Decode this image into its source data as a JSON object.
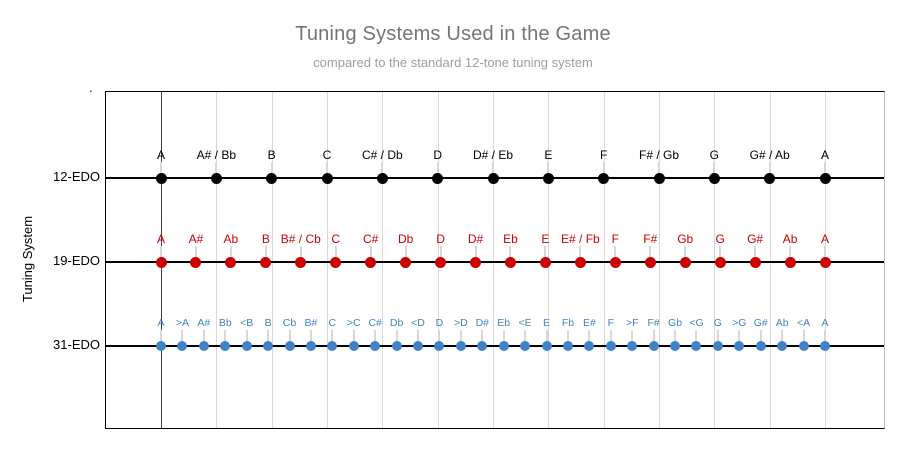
{
  "chart_data": {
    "type": "scatter",
    "title": "Tuning Systems Used in the Game",
    "subtitle": "compared to the standard 12-tone tuning system",
    "ylabel": "Tuning System",
    "corner_marker": ".",
    "legend": "none",
    "grid": "vertical gridlines at each 12-EDO note position; emphasized line at first note A",
    "x_range_semitones": [
      0,
      12
    ],
    "rows": [
      {
        "label": "12-EDO",
        "color": "#000000",
        "dot_size": 11,
        "notes": [
          "A",
          "A# / Bb",
          "B",
          "C",
          "C# / Db",
          "D",
          "D# / Eb",
          "E",
          "F",
          "F# / Gb",
          "G",
          "G# / Ab",
          "A"
        ]
      },
      {
        "label": "19-EDO",
        "color": "#cc0000",
        "dot_size": 11,
        "notes": [
          "A",
          "A#",
          "Ab",
          "B",
          "B# / Cb",
          "C",
          "C#",
          "Db",
          "D",
          "D#",
          "Eb",
          "E",
          "E# / Fb",
          "F",
          "F#",
          "Gb",
          "G",
          "G#",
          "Ab",
          "A"
        ]
      },
      {
        "label": "31-EDO",
        "color": "#4183c6",
        "dot_size": 10,
        "notes": [
          "A",
          ">A",
          "A#",
          "Bb",
          "<B",
          "B",
          "Cb",
          "B#",
          "C",
          ">C",
          "C#",
          "Db",
          "<D",
          "D",
          ">D",
          "D#",
          "Eb",
          "<E",
          "E",
          "Fb",
          "E#",
          "F",
          ">F",
          "F#",
          "Gb",
          "<G",
          "G",
          ">G",
          "G#",
          "Ab",
          "<A",
          "A"
        ]
      }
    ]
  }
}
